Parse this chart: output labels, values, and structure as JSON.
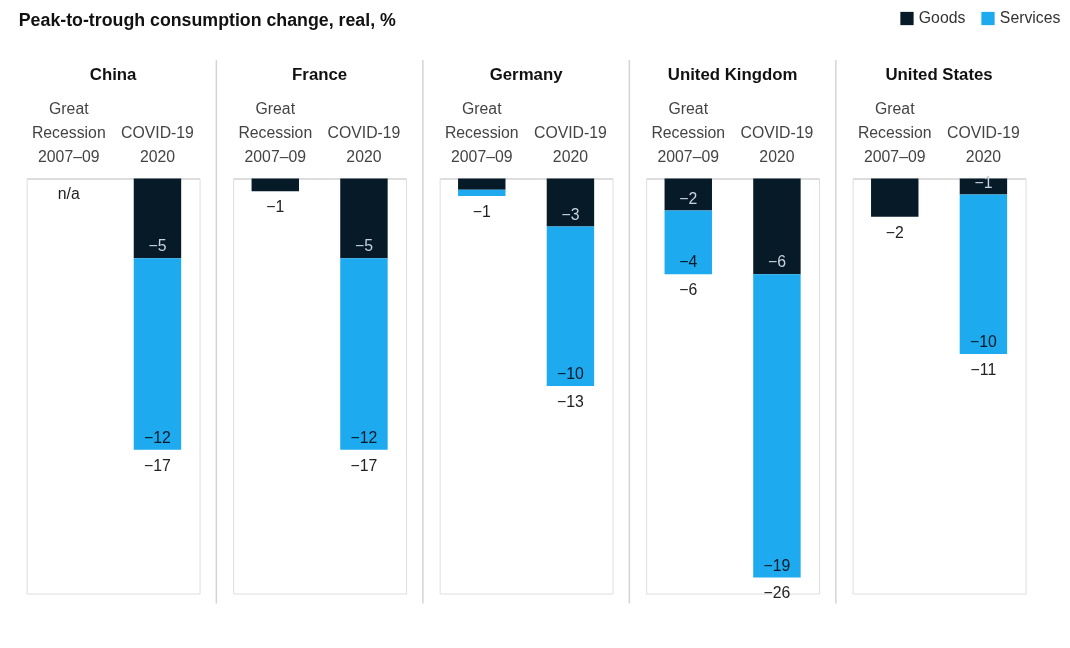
{
  "chart_data": [
    {
      "type": "bar",
      "stacked": true,
      "title": "China",
      "annotations": [
        "Peak-to-trough consumption change, real, %"
      ],
      "categories": [
        "Great Recession 2007–09",
        "COVID-19 2020"
      ],
      "series": [
        {
          "color": "#061a28",
          "values": [
            null,
            -5
          ],
          "value_labels": [
            null,
            "−5"
          ]
        },
        {
          "color": "#1eaaee",
          "values": [
            null,
            -12
          ],
          "value_labels": [
            null,
            "−12"
          ]
        }
      ],
      "totals": [
        "n/a",
        "−17"
      ]
    },
    {
      "type": "bar",
      "stacked": true,
      "title": "France",
      "categories": [
        "Great Recession 2007–09",
        "COVID-19 2020"
      ],
      "series": [
        {
          "color": "#061a28",
          "values": [
            -0.8,
            -5
          ],
          "value_labels": [
            null,
            "−5"
          ]
        },
        {
          "color": "#1eaaee",
          "values": [
            null,
            -12
          ],
          "value_labels": [
            null,
            "−12"
          ]
        }
      ],
      "totals": [
        "−1",
        "−17"
      ]
    },
    {
      "type": "bar",
      "stacked": true,
      "title": "Germany",
      "categories": [
        "Great Recession 2007–09",
        "COVID-19 2020"
      ],
      "series": [
        {
          "color": "#061a28",
          "values": [
            -0.7,
            -3
          ],
          "value_labels": [
            null,
            "−3"
          ]
        },
        {
          "color": "#1eaaee",
          "values": [
            -0.4,
            -10
          ],
          "value_labels": [
            null,
            "−10"
          ]
        }
      ],
      "totals": [
        "−1",
        "−13"
      ]
    },
    {
      "type": "bar",
      "stacked": true,
      "title": "United Kingdom",
      "categories": [
        "Great Recession 2007–09",
        "COVID-19 2020"
      ],
      "series": [
        {
          "color": "#061a28",
          "values": [
            -2,
            -6
          ],
          "value_labels": [
            "−2",
            "−6"
          ]
        },
        {
          "color": "#1eaaee",
          "values": [
            -4,
            -19
          ],
          "value_labels": [
            "−4",
            "−19"
          ]
        }
      ],
      "totals": [
        "−6",
        "−26"
      ]
    },
    {
      "type": "bar",
      "stacked": true,
      "title": "United States",
      "legend": "top right",
      "categories": [
        "Great Recession 2007–09",
        "COVID-19 2020"
      ],
      "series": [
        {
          "name": "Goods",
          "color": "#061a28",
          "values": [
            -2.4,
            -1
          ],
          "value_labels": [
            null,
            "−1"
          ]
        },
        {
          "name": "Services",
          "color": "#1eaaee",
          "values": [
            null,
            -10
          ],
          "value_labels": [
            null,
            "−10"
          ]
        }
      ],
      "totals": [
        "−2",
        "−11"
      ]
    }
  ]
}
